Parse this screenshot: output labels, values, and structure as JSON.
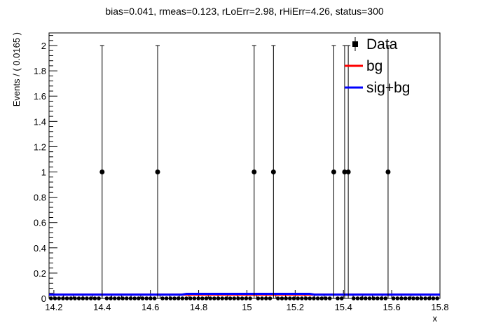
{
  "chart_data": {
    "type": "scatter",
    "title": "bias=0.041, rmeas=0.123, rLoErr=2.98, rHiErr=4.26, status=300",
    "xlabel": "x",
    "ylabel": "Events / ( 0.0165 )",
    "xlim": [
      14.18,
      15.8
    ],
    "ylim": [
      0,
      2.1
    ],
    "x_ticks": [
      14.2,
      14.4,
      14.6,
      14.8,
      15.0,
      15.2,
      15.4,
      15.6,
      15.8
    ],
    "x_tick_labels": [
      "14.2",
      "14.4",
      "14.6",
      "14.8",
      "15",
      "15.2",
      "15.4",
      "15.6",
      "15.8"
    ],
    "y_ticks": [
      0,
      0.2,
      0.4,
      0.6,
      0.8,
      1.0,
      1.2,
      1.4,
      1.6,
      1.8,
      2.0
    ],
    "y_tick_labels": [
      "0",
      "0.2",
      "0.4",
      "0.6",
      "0.8",
      "1",
      "1.2",
      "1.4",
      "1.6",
      "1.8",
      "2"
    ],
    "bin_width": 0.0165,
    "nonzero_points": [
      {
        "x": 14.4,
        "y": 1,
        "err_hi": 1
      },
      {
        "x": 14.63,
        "y": 1,
        "err_hi": 1
      },
      {
        "x": 15.03,
        "y": 1,
        "err_hi": 1
      },
      {
        "x": 15.11,
        "y": 1,
        "err_hi": 1
      },
      {
        "x": 15.36,
        "y": 1,
        "err_hi": 1
      },
      {
        "x": 15.405,
        "y": 1,
        "err_hi": 1
      },
      {
        "x": 15.42,
        "y": 1,
        "err_hi": 1
      },
      {
        "x": 15.585,
        "y": 1,
        "err_hi": 1
      }
    ],
    "series": [
      {
        "name": "bg",
        "color": "#ff0000",
        "x": [
          14.18,
          15.8
        ],
        "y": [
          0.03,
          0.03
        ]
      },
      {
        "name": "sig+bg",
        "color": "#0000ff",
        "x": [
          14.18,
          14.73,
          14.75,
          15.26,
          15.28,
          15.8
        ],
        "y": [
          0.03,
          0.03,
          0.036,
          0.036,
          0.03,
          0.03
        ]
      }
    ],
    "legend": {
      "placement": "top-right",
      "entries": [
        {
          "label": "Data",
          "marker": "square"
        },
        {
          "label": "bg",
          "color": "#ff0000"
        },
        {
          "label": "sig+bg",
          "color": "#0000ff"
        }
      ]
    },
    "grid": false
  }
}
